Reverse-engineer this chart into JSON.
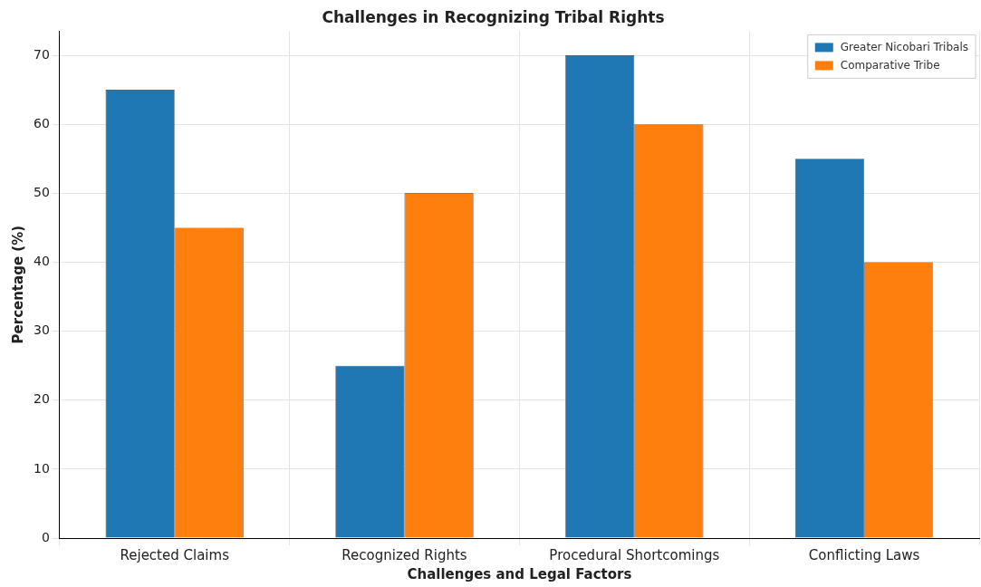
{
  "chart_data": {
    "type": "bar",
    "title": "Challenges in Recognizing Tribal Rights",
    "xlabel": "Challenges and Legal Factors",
    "ylabel": "Percentage (%)",
    "categories": [
      "Rejected Claims",
      "Recognized Rights",
      "Procedural Shortcomings",
      "Conflicting Laws"
    ],
    "series": [
      {
        "name": "Greater Nicobari Tribals",
        "color": "#1f77b4",
        "values": [
          65,
          25,
          70,
          55
        ]
      },
      {
        "name": "Comparative Tribe",
        "color": "#ff7f0e",
        "values": [
          45,
          50,
          60,
          40
        ]
      }
    ],
    "ylim": [
      0,
      73.5
    ],
    "yticks": [
      0,
      10,
      20,
      30,
      40,
      50,
      60,
      70
    ],
    "grid": true,
    "legend": "top right"
  }
}
